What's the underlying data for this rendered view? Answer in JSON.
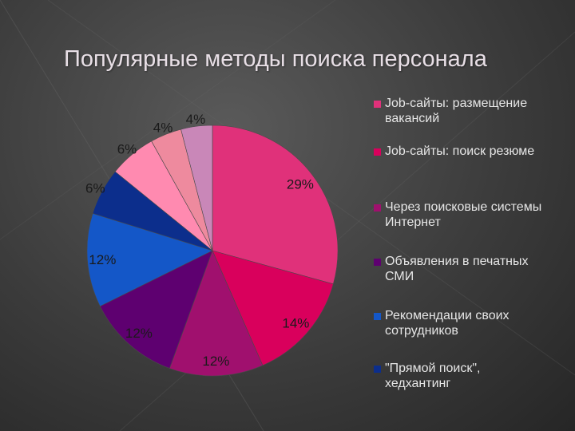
{
  "slide": {
    "title": "Популярные методы поиска персонала"
  },
  "chart_data": {
    "type": "pie",
    "title": "Популярные методы поиска персонала",
    "legend_position": "right",
    "slices": [
      {
        "label": "Job-сайты: размещение вакансий",
        "value": 29,
        "display": "29%",
        "color": "#e0317a"
      },
      {
        "label": "Job-сайты: поиск резюме",
        "value": 14,
        "display": "14%",
        "color": "#d9005c"
      },
      {
        "label": "Через поисковые системы Интернет",
        "value": 12,
        "display": "12%",
        "color": "#a0106e"
      },
      {
        "label": "Объявления в печатных СМИ",
        "value": 12,
        "display": "12%",
        "color": "#5e0070"
      },
      {
        "label": "Рекомендации своих сотрудников",
        "value": 12,
        "display": "12%",
        "color": "#1457c8"
      },
      {
        "label": "\"Прямой поиск\", хедхантинг",
        "value": 6,
        "display": "6%",
        "color": "#0c2e8c"
      },
      {
        "label": "",
        "value": 6,
        "display": "6%",
        "color": "#ff8ab0"
      },
      {
        "label": "",
        "value": 4,
        "display": "4%",
        "color": "#ee8a9e"
      },
      {
        "label": "",
        "value": 4,
        "display": "4%",
        "color": "#c987b8"
      }
    ]
  },
  "legend": {
    "items": [
      {
        "text": "Job-сайты: размещение вакансий",
        "color": "#e0317a"
      },
      {
        "text": "Job-сайты: поиск резюме",
        "color": "#d9005c"
      },
      {
        "text": "Через поисковые системы Интернет",
        "color": "#a0106e"
      },
      {
        "text": "Объявления в печатных СМИ",
        "color": "#5e0070"
      },
      {
        "text": "Рекомендации своих сотрудников",
        "color": "#1457c8"
      },
      {
        "text": "\"Прямой поиск\", хедхантинг",
        "color": "#0c2e8c"
      }
    ]
  }
}
